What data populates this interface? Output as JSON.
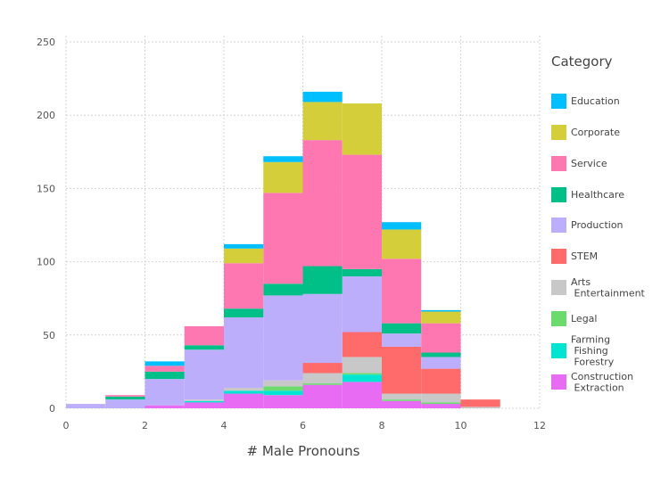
{
  "chart_data": {
    "type": "bar",
    "stacked": true,
    "xlabel": "# Male Pronouns",
    "ylabel": "",
    "xlim": [
      0,
      12
    ],
    "ylim": [
      0,
      250
    ],
    "xticks": [
      0,
      2,
      4,
      6,
      8,
      10,
      12
    ],
    "yticks": [
      0,
      50,
      100,
      150,
      200,
      250
    ],
    "grid": true,
    "legend_position": "right",
    "legend_title": "Category",
    "bins": [
      [
        0,
        1
      ],
      [
        1,
        2
      ],
      [
        2,
        3
      ],
      [
        3,
        4
      ],
      [
        4,
        5
      ],
      [
        5,
        6
      ],
      [
        6,
        7
      ],
      [
        7,
        8
      ],
      [
        8,
        9
      ],
      [
        9,
        10
      ],
      [
        10,
        11
      ]
    ],
    "series": [
      {
        "name": "Construction\nExtraction",
        "color": "#E76BF3",
        "values": [
          0,
          0,
          2,
          4,
          10,
          9,
          16,
          18,
          5,
          3,
          0
        ]
      },
      {
        "name": "Farming\nFishing\nForestry",
        "color": "#00E5D2",
        "values": [
          0,
          0,
          0,
          1,
          2,
          3,
          0,
          5,
          0,
          0,
          0
        ]
      },
      {
        "name": "Legal",
        "color": "#6BDB6E",
        "values": [
          0,
          0,
          0,
          0,
          0,
          3,
          1,
          1,
          1,
          1,
          0
        ]
      },
      {
        "name": "Arts\nEntertainment",
        "color": "#C8C8C8",
        "values": [
          0,
          0,
          0,
          1,
          2,
          4,
          7,
          11,
          4,
          6,
          1
        ]
      },
      {
        "name": "STEM",
        "color": "#FF6B6B",
        "values": [
          0,
          0,
          0,
          0,
          0,
          0,
          7,
          17,
          32,
          17,
          5
        ]
      },
      {
        "name": "Production",
        "color": "#BDAEFC",
        "values": [
          3,
          6,
          18,
          34,
          48,
          58,
          47,
          38,
          9,
          8,
          0
        ]
      },
      {
        "name": "Healthcare",
        "color": "#00BF87",
        "values": [
          0,
          2,
          5,
          3,
          6,
          8,
          19,
          5,
          7,
          3,
          0
        ]
      },
      {
        "name": "Service",
        "color": "#FF77B0",
        "values": [
          0,
          1,
          4,
          13,
          31,
          62,
          86,
          78,
          44,
          20,
          0
        ]
      },
      {
        "name": "Corporate",
        "color": "#D4CE3A",
        "values": [
          0,
          0,
          0,
          0,
          10,
          21,
          26,
          35,
          20,
          8,
          0
        ]
      },
      {
        "name": "Education",
        "color": "#00BFFF",
        "values": [
          0,
          0,
          3,
          0,
          3,
          4,
          7,
          0,
          5,
          1,
          0
        ]
      }
    ],
    "legend_order": [
      "Education",
      "Corporate",
      "Service",
      "Healthcare",
      "Production",
      "STEM",
      "Arts\nEntertainment",
      "Legal",
      "Farming\nFishing\nForestry",
      "Construction\nExtraction"
    ]
  }
}
